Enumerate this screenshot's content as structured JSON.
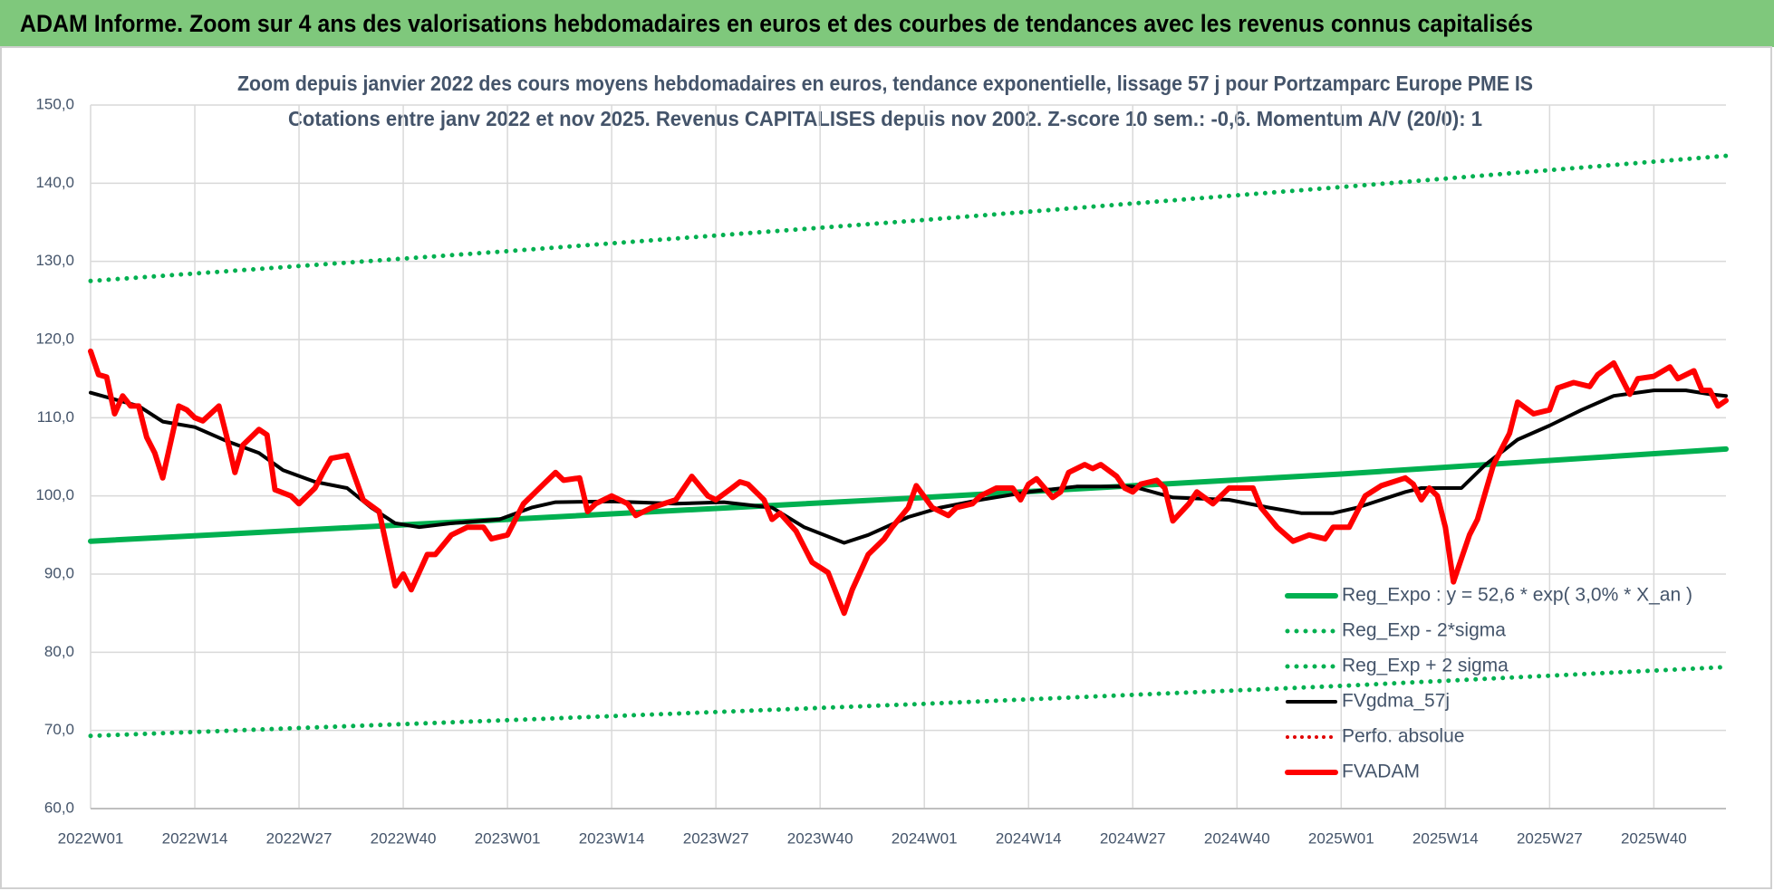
{
  "header": {
    "title": "ADAM Informe. Zoom sur 4 ans des valorisations hebdomadaires en euros et des courbes de tendances avec les revenus connus capitalisés"
  },
  "chart_data": {
    "type": "line",
    "title": "Zoom depuis janvier 2022 des cours moyens hebdomadaires en euros, tendance exponentielle, lissage 57 j pour Portzamparc Europe PME IS",
    "subtitle": "Cotations entre janv 2022 et nov 2025. Revenus CAPITALISES depuis nov 2002. Z-score 10 sem.: -0,6. Momentum A/V (20/0): 1",
    "xlim": [
      0,
      204
    ],
    "xticks": [
      {
        "value": 0,
        "label": "2022W01"
      },
      {
        "value": 13,
        "label": "2022W14"
      },
      {
        "value": 26,
        "label": "2022W27"
      },
      {
        "value": 39,
        "label": "2022W40"
      },
      {
        "value": 52,
        "label": "2023W01"
      },
      {
        "value": 65,
        "label": "2023W14"
      },
      {
        "value": 78,
        "label": "2023W27"
      },
      {
        "value": 91,
        "label": "2023W40"
      },
      {
        "value": 104,
        "label": "2024W01"
      },
      {
        "value": 117,
        "label": "2024W14"
      },
      {
        "value": 130,
        "label": "2024W27"
      },
      {
        "value": 143,
        "label": "2024W40"
      },
      {
        "value": 156,
        "label": "2025W01"
      },
      {
        "value": 169,
        "label": "2025W14"
      },
      {
        "value": 182,
        "label": "2025W27"
      },
      {
        "value": 195,
        "label": "2025W40"
      }
    ],
    "ylim": [
      60,
      150
    ],
    "yticks": [
      {
        "value": 60,
        "label": "60,0"
      },
      {
        "value": 70,
        "label": "70,0"
      },
      {
        "value": 80,
        "label": "80,0"
      },
      {
        "value": 90,
        "label": "90,0"
      },
      {
        "value": 100,
        "label": "100,0"
      },
      {
        "value": 110,
        "label": "110,0"
      },
      {
        "value": 120,
        "label": "120,0"
      },
      {
        "value": 130,
        "label": "130,0"
      },
      {
        "value": 140,
        "label": "140,0"
      },
      {
        "value": 150,
        "label": "150,0"
      }
    ],
    "grid": true,
    "legend": "lower-right",
    "series": [
      {
        "name": "Reg_Expo : y = 52,6 * exp( 3,0% *  X_an )",
        "color": "#00b050",
        "style": "solid",
        "width": 6,
        "x": [
          0,
          52,
          104,
          156,
          204
        ],
        "values": [
          94.2,
          97,
          99.8,
          102.8,
          106
        ]
      },
      {
        "name": "Reg_Exp - 2*sigma",
        "color": "#00b050",
        "style": "dotted",
        "width": 5,
        "x": [
          0,
          52,
          104,
          156,
          204
        ],
        "values": [
          69.3,
          71.3,
          73.4,
          75.7,
          78.1
        ]
      },
      {
        "name": "Reg_Exp + 2 sigma",
        "color": "#00b050",
        "style": "dotted",
        "width": 5,
        "x": [
          0,
          52,
          104,
          156,
          204
        ],
        "values": [
          127.5,
          131.3,
          135.3,
          139.5,
          143.5
        ]
      },
      {
        "name": "FVgdma_57j",
        "color": "#000000",
        "style": "solid",
        "width": 4,
        "x": [
          0,
          6,
          9,
          13,
          17,
          21,
          24,
          28,
          32,
          35,
          38,
          41,
          45,
          51,
          55,
          58,
          65,
          73,
          79,
          85,
          89,
          94,
          97,
          102,
          106,
          111,
          117,
          123,
          130,
          135,
          142,
          147,
          151,
          155,
          158,
          164,
          166,
          171,
          174,
          178,
          182,
          186,
          190,
          195,
          199,
          202,
          204
        ],
        "values": [
          113.2,
          111.5,
          109.5,
          108.8,
          107,
          105.5,
          103.3,
          101.8,
          101,
          98.5,
          96.5,
          96,
          96.5,
          97,
          98.5,
          99.2,
          99.3,
          99,
          99.2,
          98.5,
          96,
          94,
          95,
          97.3,
          98.5,
          99.5,
          100.5,
          101.2,
          101.2,
          99.8,
          99.5,
          98.5,
          97.8,
          97.8,
          98.5,
          100.5,
          101,
          101,
          104,
          107.2,
          109,
          111,
          112.8,
          113.5,
          113.5,
          113,
          112.8
        ]
      },
      {
        "name": "Perfo. absolue",
        "color": "#e00000",
        "style": "dotted",
        "width": 4,
        "x": [],
        "values": []
      },
      {
        "name": "FVADAM",
        "color": "#ff0000",
        "style": "solid",
        "width": 6,
        "x": [
          0,
          1,
          2,
          3,
          4,
          5,
          6,
          7,
          8,
          9,
          11,
          12,
          13,
          14,
          16,
          17,
          18,
          19,
          20,
          21,
          22,
          23,
          25,
          26,
          28,
          29,
          30,
          32,
          34,
          36,
          38,
          39,
          40,
          42,
          43,
          45,
          47,
          49,
          50,
          52,
          54,
          56,
          58,
          59,
          61,
          62,
          63,
          65,
          67,
          68,
          70,
          73,
          75,
          77,
          78,
          80,
          81,
          82,
          84,
          85,
          86,
          88,
          90,
          92,
          94,
          95,
          97,
          99,
          100,
          102,
          103,
          105,
          107,
          108,
          110,
          111,
          113,
          115,
          116,
          117,
          118,
          120,
          121,
          122,
          124,
          125,
          126,
          128,
          129,
          130,
          131,
          133,
          134,
          135,
          137,
          138,
          140,
          142,
          145,
          146,
          148,
          150,
          152,
          154,
          155,
          157,
          159,
          161,
          164,
          165,
          166,
          167,
          168,
          169,
          170,
          172,
          173,
          175,
          177,
          178,
          180,
          182,
          183,
          185,
          187,
          188,
          190,
          192,
          193,
          195,
          197,
          198,
          200,
          201,
          202,
          203,
          204
        ],
        "values": [
          118.5,
          115.5,
          115.2,
          110.5,
          112.8,
          111.5,
          111.5,
          107.5,
          105.5,
          102.3,
          111.5,
          111,
          110,
          109.6,
          111.5,
          107.5,
          103,
          106.5,
          107.5,
          108.5,
          107.8,
          100.8,
          100,
          99,
          101,
          103,
          104.8,
          105.2,
          99.5,
          98,
          88.5,
          90,
          88,
          92.5,
          92.5,
          95,
          96,
          96,
          94.5,
          95,
          99,
          101,
          103,
          102,
          102.3,
          98,
          99,
          100,
          99,
          97.5,
          98.5,
          99.5,
          102.5,
          100,
          99.5,
          101,
          101.8,
          101.5,
          99.5,
          97,
          97.8,
          95.5,
          91.5,
          90.2,
          85,
          88,
          92.5,
          94.5,
          96,
          98.5,
          101.3,
          98.5,
          97.5,
          98.5,
          99,
          100,
          101,
          101,
          99.5,
          101.5,
          102.2,
          99.8,
          100.5,
          103,
          104,
          103.5,
          104,
          102.5,
          101,
          100.5,
          101.5,
          102,
          101,
          96.8,
          99,
          100.5,
          99,
          101,
          101,
          98.5,
          96,
          94.2,
          95,
          94.5,
          96,
          96,
          100,
          101.3,
          102.3,
          101.5,
          99.5,
          101,
          100,
          96,
          89,
          95,
          97,
          104,
          108,
          112,
          110.5,
          111,
          113.8,
          114.5,
          114,
          115.5,
          117,
          113,
          115,
          115.3,
          116.5,
          115,
          116,
          113.5,
          113.5,
          111.5,
          112.2
        ]
      }
    ]
  }
}
